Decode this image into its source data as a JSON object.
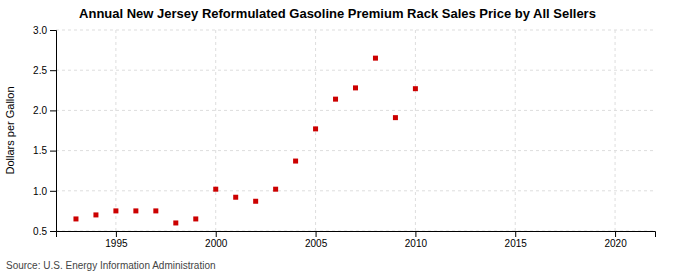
{
  "chart_data": {
    "type": "scatter",
    "title": "Annual New Jersey Reformulated Gasoline Premium Rack Sales Price by All Sellers",
    "y_label": "Dollars per Gallon",
    "source": "Source: U.S. Energy Information Administration",
    "x": [
      1993,
      1994,
      1995,
      1996,
      1997,
      1998,
      1999,
      2000,
      2001,
      2002,
      2003,
      2004,
      2005,
      2006,
      2007,
      2008,
      2009,
      2010
    ],
    "values": [
      0.65,
      0.7,
      0.75,
      0.75,
      0.75,
      0.6,
      0.65,
      1.02,
      0.92,
      0.87,
      1.02,
      1.37,
      1.77,
      2.14,
      2.28,
      2.65,
      1.91,
      2.27
    ],
    "color": "#cc0000",
    "marker": "square",
    "xlim": [
      1992,
      2022
    ],
    "ylim": [
      0.5,
      3.0
    ],
    "xticks": [
      1995,
      2000,
      2005,
      2010,
      2015,
      2020
    ],
    "yticks": [
      0.5,
      {
        "value": 1.0,
        "label": "1.0"
      },
      1.5,
      {
        "value": 2.0,
        "label": "2.0"
      },
      2.5,
      {
        "value": 3.0,
        "label": "3.0"
      }
    ],
    "grid": true
  }
}
